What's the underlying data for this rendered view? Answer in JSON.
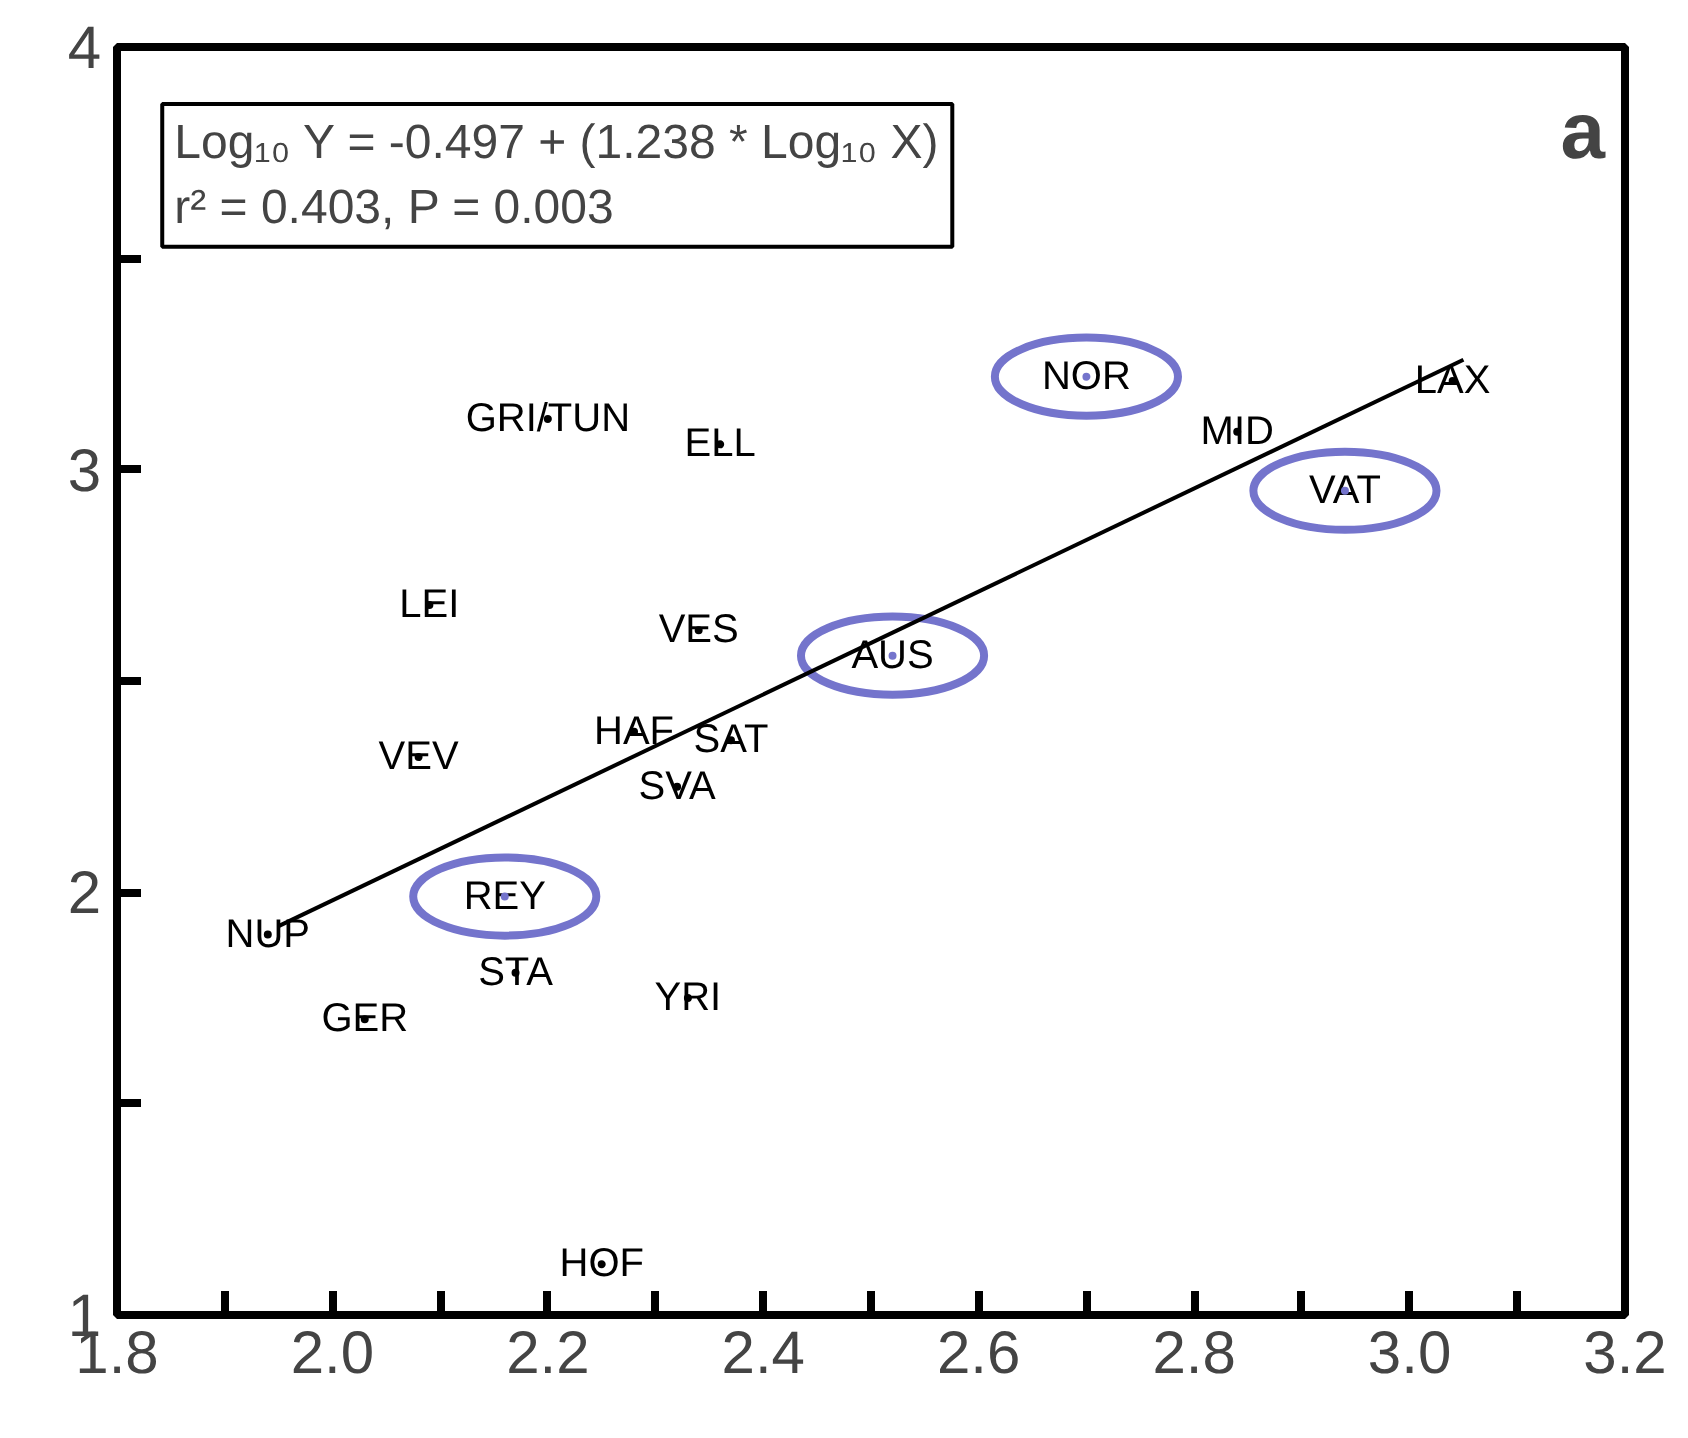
{
  "chart_data": {
    "type": "scatter",
    "series": [
      {
        "color": "#000000",
        "x": [
          2.2,
          2.36,
          2.84,
          3.04,
          2.09,
          2.34,
          2.28,
          2.37,
          2.08,
          2.32,
          1.94,
          2.17,
          2.33,
          2.03,
          2.25
        ],
        "values": [
          3.12,
          3.06,
          3.09,
          3.21,
          2.68,
          2.62,
          2.38,
          2.36,
          2.32,
          2.25,
          1.9,
          1.81,
          1.75,
          1.7,
          1.12
        ],
        "value_labels": [
          "GRI/TUN",
          "ELL",
          "MID",
          "LAX",
          "LEI",
          "VES",
          "HAF",
          "SAT",
          "VEV",
          "SVA",
          "NUP",
          "STA",
          "YRI",
          "GER",
          "HOF"
        ]
      },
      {
        "color": "#7474cc",
        "x": [
          2.7,
          2.94,
          2.52,
          2.16
        ],
        "values": [
          3.22,
          2.95,
          2.56,
          1.99
        ],
        "value_labels": [
          "NOR",
          "VAT",
          "AUS",
          "REY"
        ]
      },
      {
        "type": "line",
        "color": "#000000",
        "line_style": "solid",
        "x": [
          1.95,
          3.05
        ],
        "values": [
          1.92,
          3.26
        ]
      }
    ],
    "xlim": [
      1.8,
      3.2
    ],
    "xticks": [
      1.8,
      {
        "value": 1.9,
        "label": null
      },
      "2.0",
      {
        "value": 2.1,
        "label": null
      },
      2.2,
      {
        "value": 2.3,
        "label": null
      },
      2.4,
      {
        "value": 2.5,
        "label": null
      },
      2.6,
      {
        "value": 2.7,
        "label": null
      },
      2.8,
      {
        "value": 2.9,
        "label": null
      },
      "3.0",
      {
        "value": 3.1,
        "label": null
      },
      3.2
    ],
    "ylim": [
      1,
      4
    ],
    "yticks": [
      1,
      {
        "value": 1.5,
        "label": null
      },
      2,
      {
        "value": 2.5,
        "label": null
      },
      3,
      {
        "value": 3.5,
        "label": null
      },
      4
    ],
    "grid": false,
    "annotations": [
      "Log₁₀ Y = -0.497 + (1.238 * Log₁₀ X)\nr² = 0.403, P = 0.003",
      "a"
    ]
  }
}
